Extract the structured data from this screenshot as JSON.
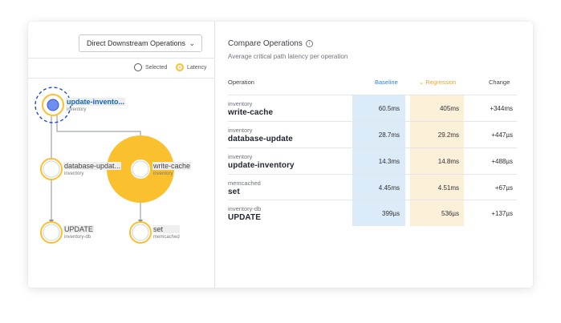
{
  "graph_panel": {
    "view_select": "Direct Downstream Operations",
    "legend": {
      "selected": "Selected",
      "latency": "Latency"
    },
    "nodes": [
      {
        "name": "update-invento...",
        "service": "inventory"
      },
      {
        "name": "database-updat...",
        "service": "inventory"
      },
      {
        "name": "write-cache",
        "service": "inventory"
      },
      {
        "name": "UPDATE",
        "service": "inventory-db"
      },
      {
        "name": "set",
        "service": "memcached"
      }
    ]
  },
  "compare_panel": {
    "title": "Compare Operations",
    "subtitle": "Average critical path latency per operation",
    "columns": {
      "operation": "Operation",
      "baseline": "Baseline",
      "regression": "Regression",
      "change": "Change"
    },
    "rows": [
      {
        "service": "inventory",
        "operation": "write-cache",
        "baseline": "60.5ms",
        "regression": "405ms",
        "change": "+344ms"
      },
      {
        "service": "inventory",
        "operation": "database-update",
        "baseline": "28.7ms",
        "regression": "29.2ms",
        "change": "+447µs"
      },
      {
        "service": "inventory",
        "operation": "update-inventory",
        "baseline": "14.3ms",
        "regression": "14.8ms",
        "change": "+488µs"
      },
      {
        "service": "memcached",
        "operation": "set",
        "baseline": "4.45ms",
        "regression": "4.51ms",
        "change": "+67µs"
      },
      {
        "service": "inventory-db",
        "operation": "UPDATE",
        "baseline": "399µs",
        "regression": "536µs",
        "change": "+137µs"
      }
    ]
  },
  "colors": {
    "selected": "#1565c0",
    "latency": "#fbc02d",
    "baseline_bg": "#dcebf8",
    "regression_bg": "#fdf0d9"
  }
}
